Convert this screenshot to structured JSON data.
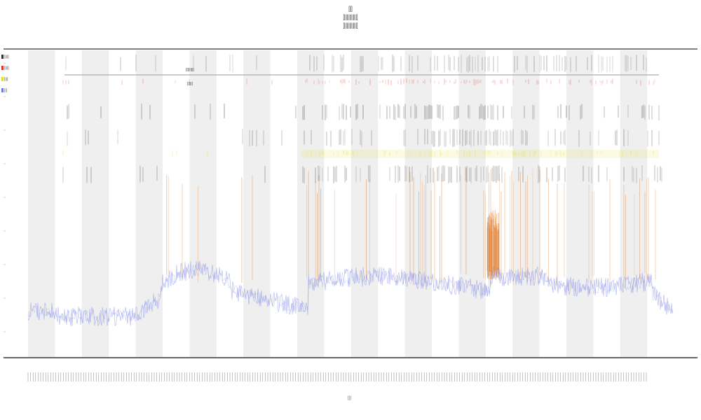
{
  "chart_data": {
    "type": "line",
    "title_lines": [
      "[||]",
      "[||||||||||||||]",
      "[||||||||||||||]"
    ],
    "band_count": 12,
    "band_color": "#efefef",
    "series": [
      {
        "color": "#6d78e6"
      },
      {
        "color": "#e07a28"
      },
      {
        "color": "#e0e020"
      },
      {
        "color": "#333333"
      },
      {
        "color": "#e03030"
      }
    ],
    "upper_labels": [
      "[|||||||]",
      "[||||]"
    ],
    "legend": [
      "[|||]",
      "[|||]",
      "[||]",
      "[|]"
    ],
    "footer": "[|]"
  }
}
